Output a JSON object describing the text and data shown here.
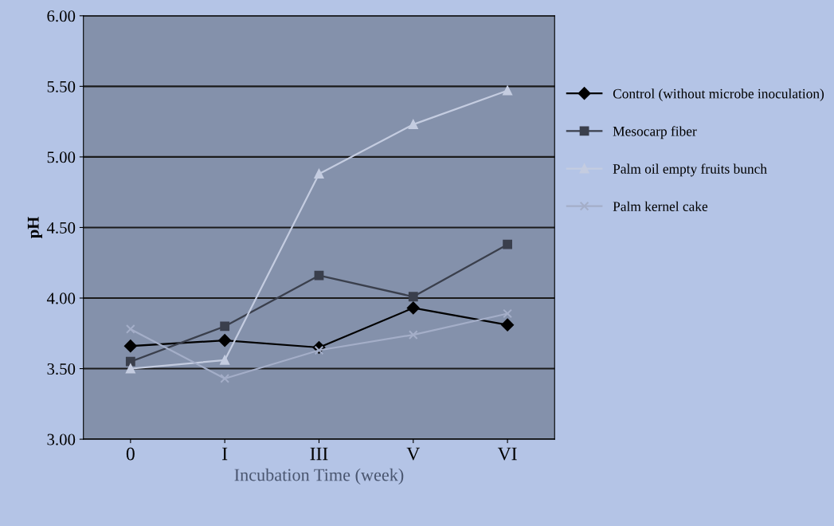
{
  "chart_data": {
    "type": "line",
    "xlabel": "Incubation Time (week)",
    "ylabel": "pH",
    "categories": [
      "0",
      "I",
      "III",
      "V",
      "VI"
    ],
    "series": [
      {
        "name": "Control (without microbe inoculation)",
        "color": "#000000",
        "marker": "diamond",
        "values": [
          3.66,
          3.7,
          3.65,
          3.93,
          3.81
        ]
      },
      {
        "name": "Mesocarp fiber",
        "color": "#3a3f4c",
        "marker": "square",
        "values": [
          3.55,
          3.8,
          4.16,
          4.01,
          4.38
        ]
      },
      {
        "name": "Palm oil empty fruits bunch",
        "color": "#c4cce0",
        "marker": "triangle",
        "values": [
          3.5,
          3.56,
          4.88,
          5.23,
          5.47
        ]
      },
      {
        "name": "Palm kernel cake",
        "color": "#a4aec8",
        "marker": "cross",
        "values": [
          3.78,
          3.43,
          3.63,
          3.74,
          3.89
        ]
      }
    ],
    "ylim": [
      3.0,
      6.0
    ],
    "yticks": [
      {
        "value": 3.0,
        "label": "3.00"
      },
      {
        "value": 3.5,
        "label": "3.50"
      },
      {
        "value": 4.0,
        "label": "4.00"
      },
      {
        "value": 4.5,
        "label": "4.50"
      },
      {
        "value": 5.0,
        "label": "5.00"
      },
      {
        "value": 5.5,
        "label": "5.50"
      },
      {
        "value": 6.0,
        "label": "6.00"
      }
    ],
    "grid": "y",
    "legend": "right",
    "line_style": "solid"
  }
}
